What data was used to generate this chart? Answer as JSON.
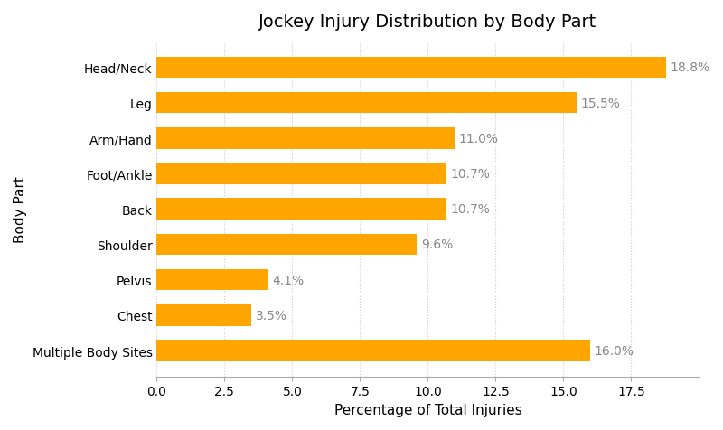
{
  "title": "Jockey Injury Distribution by Body Part",
  "xlabel": "Percentage of Total Injuries",
  "ylabel": "Body Part",
  "categories": [
    "Head/Neck",
    "Leg",
    "Arm/Hand",
    "Foot/Ankle",
    "Back",
    "Shoulder",
    "Pelvis",
    "Chest",
    "Multiple Body Sites"
  ],
  "values": [
    18.8,
    15.5,
    11.0,
    10.7,
    10.7,
    9.6,
    4.1,
    3.5,
    16.0
  ],
  "bar_color": "#FFA500",
  "label_color": "#888888",
  "background_color": "#ffffff",
  "xlim": [
    0,
    20
  ],
  "xticks": [
    0.0,
    2.5,
    5.0,
    7.5,
    10.0,
    12.5,
    15.0,
    17.5
  ],
  "xtick_labels": [
    "0.0",
    "2.5",
    "5.0",
    "7.5",
    "10.0",
    "12.5",
    "15.0",
    "17.5"
  ],
  "title_fontsize": 14,
  "label_fontsize": 11,
  "tick_fontsize": 10,
  "bar_height": 0.6,
  "grid_color": "#cccccc",
  "grid_style": "dotted"
}
